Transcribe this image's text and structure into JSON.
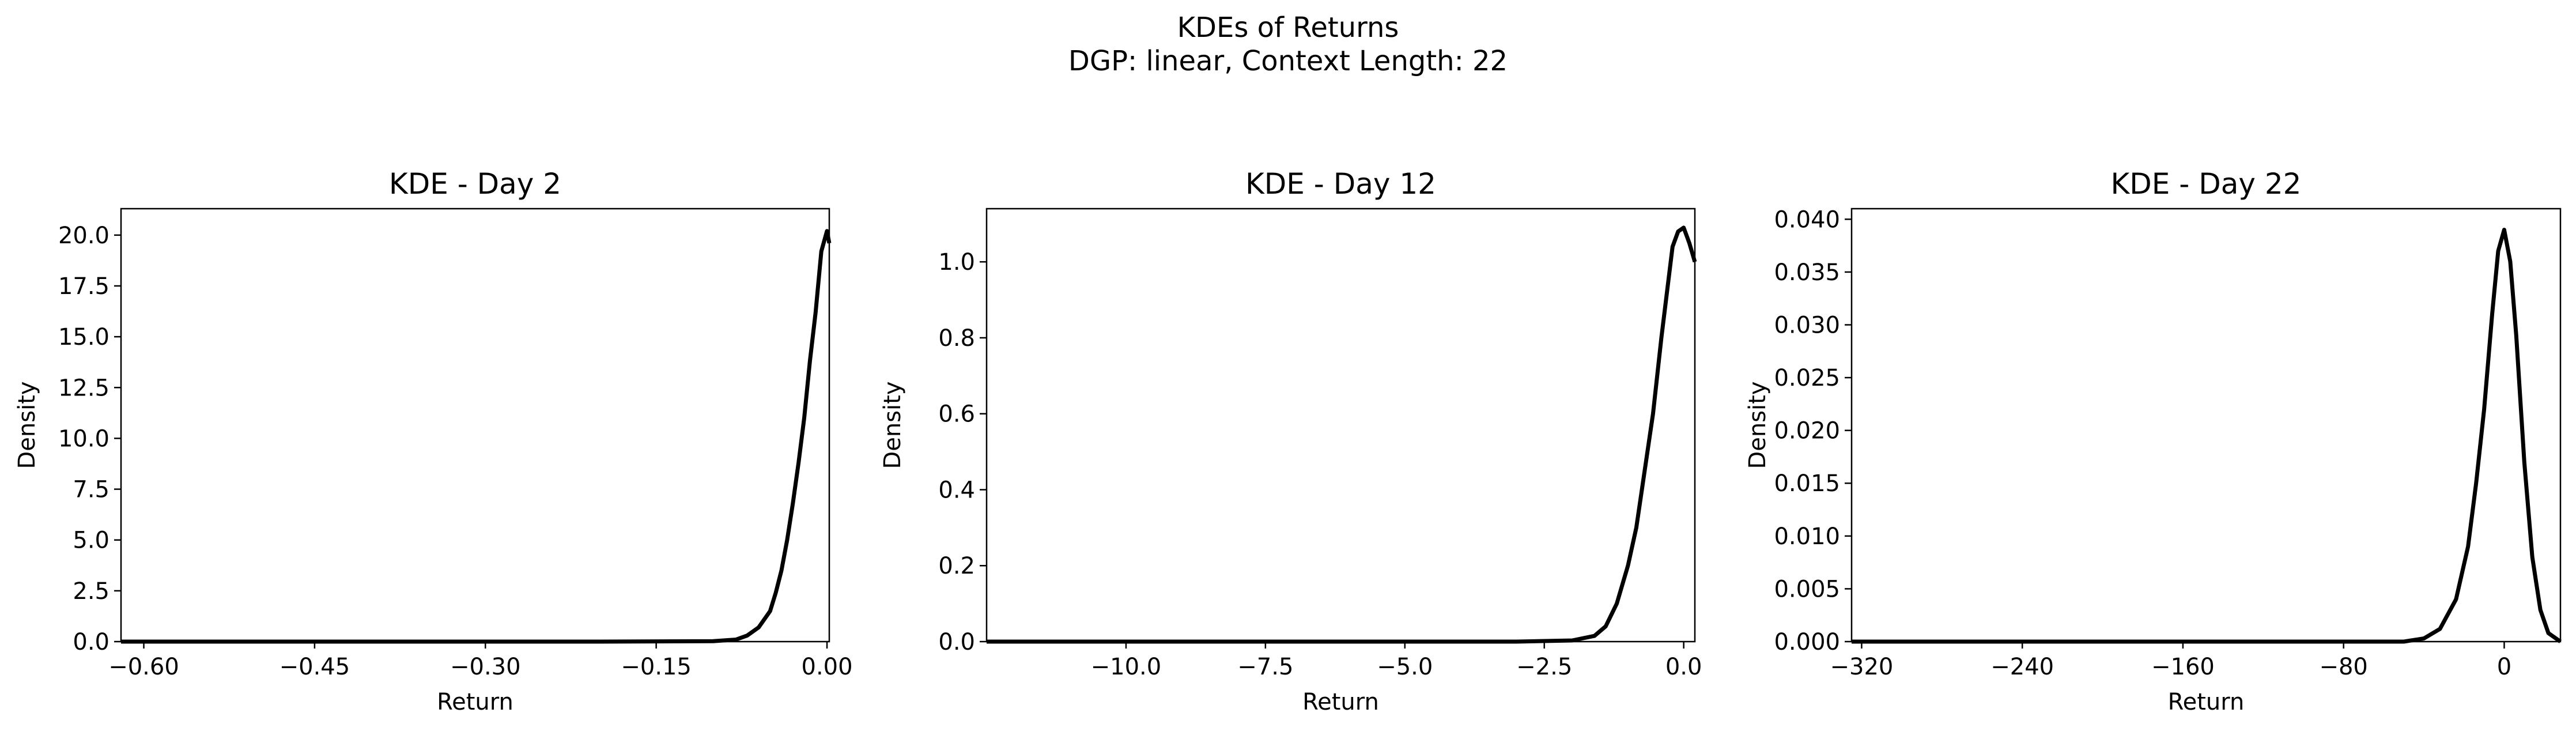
{
  "figure": {
    "title_line1": "KDEs of Returns",
    "title_line2": "DGP: linear, Context Length: 22"
  },
  "chart_data": [
    {
      "type": "line",
      "title": "KDE - Day 2",
      "xlabel": "Return",
      "ylabel": "Density",
      "xlim": [
        -0.62,
        0.002
      ],
      "ylim": [
        0,
        21.3
      ],
      "xticks": [
        -0.6,
        -0.45,
        -0.3,
        -0.15,
        0.0
      ],
      "xtick_labels": [
        "−0.60",
        "−0.45",
        "−0.30",
        "−0.15",
        "0.00"
      ],
      "yticks": [
        0,
        2.5,
        5,
        7.5,
        10,
        12.5,
        15,
        17.5,
        20
      ],
      "ytick_labels": [
        "0.0",
        "2.5",
        "5.0",
        "7.5",
        "10.0",
        "12.5",
        "15.0",
        "17.5",
        "20.0"
      ],
      "line_color": "#000000",
      "series": [
        {
          "x": [
            -0.62,
            -0.4,
            -0.2,
            -0.1,
            -0.08,
            -0.07,
            -0.06,
            -0.05,
            -0.045,
            -0.04,
            -0.035,
            -0.03,
            -0.025,
            -0.02,
            -0.015,
            -0.01,
            -0.005,
            0.0,
            0.002
          ],
          "y": [
            0,
            0,
            0,
            0.02,
            0.1,
            0.3,
            0.7,
            1.5,
            2.4,
            3.5,
            5.0,
            6.8,
            8.8,
            11.0,
            13.8,
            16.2,
            19.2,
            20.2,
            19.6
          ]
        }
      ]
    },
    {
      "type": "line",
      "title": "KDE - Day 12",
      "xlabel": "Return",
      "ylabel": "Density",
      "xlim": [
        -12.5,
        0.2
      ],
      "ylim": [
        0,
        1.14
      ],
      "xticks": [
        -10.0,
        -7.5,
        -5.0,
        -2.5,
        0.0
      ],
      "xtick_labels": [
        "−10.0",
        "−7.5",
        "−5.0",
        "−2.5",
        "0.0"
      ],
      "yticks": [
        0,
        0.2,
        0.4,
        0.6,
        0.8,
        1.0
      ],
      "ytick_labels": [
        "0.0",
        "0.2",
        "0.4",
        "0.6",
        "0.8",
        "1.0"
      ],
      "line_color": "#000000",
      "series": [
        {
          "x": [
            -12.5,
            -6.0,
            -3.0,
            -2.0,
            -1.6,
            -1.4,
            -1.2,
            -1.0,
            -0.85,
            -0.7,
            -0.55,
            -0.4,
            -0.3,
            -0.2,
            -0.1,
            0.0,
            0.1,
            0.2
          ],
          "y": [
            0,
            0,
            0,
            0.003,
            0.015,
            0.04,
            0.1,
            0.2,
            0.3,
            0.45,
            0.6,
            0.8,
            0.92,
            1.04,
            1.08,
            1.09,
            1.05,
            1.0
          ]
        }
      ]
    },
    {
      "type": "line",
      "title": "KDE - Day 22",
      "xlabel": "Return",
      "ylabel": "Density",
      "xlim": [
        -325,
        28
      ],
      "ylim": [
        0,
        0.041
      ],
      "xticks": [
        -320,
        -240,
        -160,
        -80,
        0
      ],
      "xtick_labels": [
        "−320",
        "−240",
        "−160",
        "−80",
        "0"
      ],
      "yticks": [
        0,
        0.005,
        0.01,
        0.015,
        0.02,
        0.025,
        0.03,
        0.035,
        0.04
      ],
      "ytick_labels": [
        "0.000",
        "0.005",
        "0.010",
        "0.015",
        "0.020",
        "0.025",
        "0.030",
        "0.035",
        "0.040"
      ],
      "line_color": "#000000",
      "series": [
        {
          "x": [
            -325,
            -120,
            -50,
            -40,
            -32,
            -24,
            -18,
            -14,
            -10,
            -6,
            -3,
            0,
            3,
            6,
            10,
            14,
            18,
            22,
            28
          ],
          "y": [
            0,
            0,
            0,
            0.0003,
            0.0012,
            0.004,
            0.009,
            0.015,
            0.022,
            0.031,
            0.037,
            0.039,
            0.036,
            0.029,
            0.017,
            0.008,
            0.003,
            0.0008,
            0
          ]
        }
      ]
    }
  ]
}
